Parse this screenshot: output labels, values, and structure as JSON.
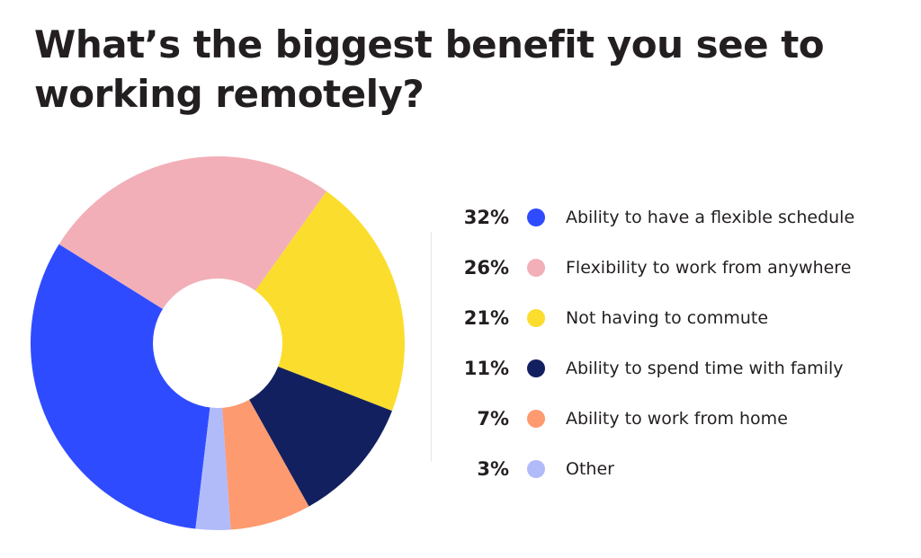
{
  "chart_data": {
    "type": "pie",
    "title": "What’s the biggest benefit you see to working remotely?",
    "categories": [
      "Ability to have a flexible schedule",
      "Flexibility to work from anywhere",
      "Not having to commute",
      "Ability to spend time with family",
      "Ability to work from home",
      "Other"
    ],
    "values": [
      32,
      26,
      21,
      11,
      7,
      3
    ],
    "value_labels": [
      "32%",
      "26%",
      "21%",
      "11%",
      "7%",
      "3%"
    ],
    "colors": [
      "#2f4bff",
      "#f2afb8",
      "#fbdd2d",
      "#13205f",
      "#fd9a6f",
      "#b1bbfa"
    ],
    "legend_placement": "right",
    "donut": true
  }
}
